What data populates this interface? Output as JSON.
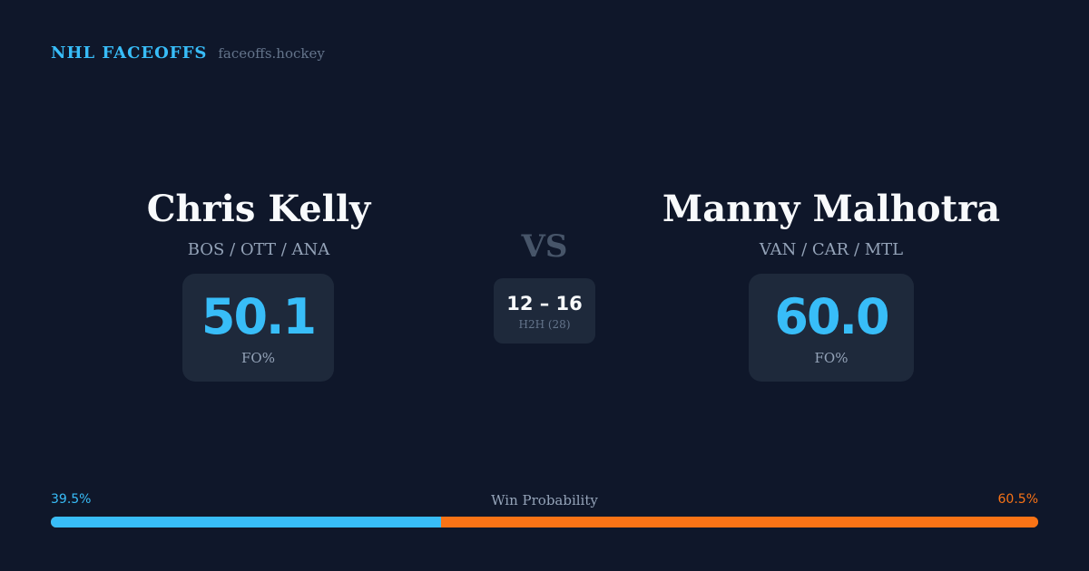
{
  "brand": {
    "name": "NHL FACEOFFS",
    "url": "faceoffs.hockey"
  },
  "matchup": {
    "left": {
      "name": "Chris Kelly",
      "teams": "BOS / OTT / ANA",
      "fo_pct": "50.1",
      "fo_label": "FO%"
    },
    "right": {
      "name": "Manny Malhotra",
      "teams": "VAN / CAR / MTL",
      "fo_pct": "60.0",
      "fo_label": "FO%"
    },
    "vs": "VS",
    "h2h": {
      "score": "12 – 16",
      "label": "H2H (28)"
    }
  },
  "win_probability": {
    "title": "Win Probability",
    "left_label": "39.5%",
    "right_label": "60.5%",
    "left_value": 39.5,
    "right_value": 60.5
  },
  "colors": {
    "background": "#0f172a",
    "accent_left": "#38bdf8",
    "accent_right": "#f97316",
    "card": "#1e293b"
  }
}
